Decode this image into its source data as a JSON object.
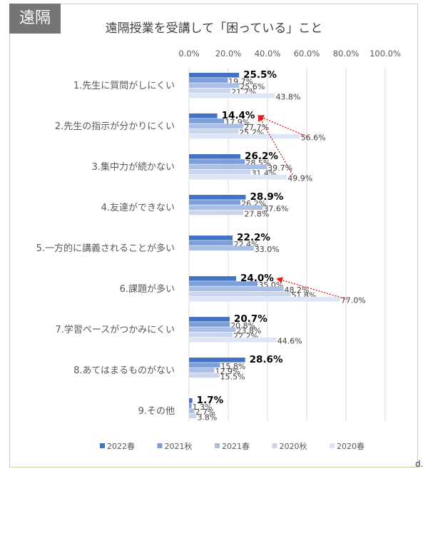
{
  "tag_label": "遠隔",
  "chart_data": {
    "type": "bar",
    "orientation": "horizontal",
    "title": "遠隔授業を受講して「困っている」こと",
    "xlim": [
      0,
      100
    ],
    "x_ticks": [
      "0.0%",
      "20.0%",
      "40.0%",
      "60.0%",
      "80.0%",
      "100.0%"
    ],
    "grid": true,
    "legend_position": "bottom",
    "categories": [
      "1.先生に質問がしにくい",
      "2.先生の指示が分かりにくい",
      "3.集中力が続かない",
      "4.友達ができない",
      "5.一方的に講義されることが多い",
      "6.課題が多い",
      "7.学習ペースがつかみにくい",
      "8.あてはまるものがない",
      "9.その他"
    ],
    "series": [
      {
        "name": "2022春",
        "color": "#4472c4",
        "values": [
          25.5,
          14.4,
          26.2,
          28.9,
          22.2,
          24.0,
          20.7,
          28.6,
          1.7
        ],
        "labels": [
          "25.5%",
          "14.4%",
          "26.2%",
          "28.9%",
          "22.2%",
          "24.0%",
          "20.7%",
          "28.6%",
          "1.7%"
        ]
      },
      {
        "name": "2021秋",
        "color": "#7c9ed9",
        "values": [
          19.7,
          17.9,
          28.5,
          26.2,
          22.4,
          35.0,
          20.8,
          15.8,
          1.3
        ],
        "labels": [
          "19.7%",
          "17.9%",
          "28.5%",
          "26.2%",
          "22.4%",
          "35.0%",
          "20.8%",
          "15.8%",
          "1.3%"
        ]
      },
      {
        "name": "2021春",
        "color": "#a9bfe5",
        "values": [
          25.6,
          27.7,
          39.7,
          37.6,
          33.0,
          48.2,
          23.8,
          12.9,
          2.7
        ],
        "labels": [
          "25.6%",
          "27.7%",
          "39.7%",
          "37.6%",
          "33.0%",
          "48.2%",
          "23.8%",
          "12.9%",
          "2.7%"
        ]
      },
      {
        "name": "2020秋",
        "color": "#c9d6ee",
        "values": [
          21.2,
          25.2,
          31.4,
          27.8,
          null,
          51.8,
          22.2,
          15.5,
          3.8
        ],
        "labels": [
          "21.2%",
          "25.2%",
          "31.4%",
          "27.8%",
          null,
          "51.8%",
          "22.2%",
          "15.5%",
          "3.8%"
        ]
      },
      {
        "name": "2020春",
        "color": "#dde6f6",
        "values": [
          43.8,
          56.6,
          49.9,
          null,
          null,
          77.0,
          44.6,
          null,
          null
        ],
        "labels": [
          "43.8%",
          "56.6%",
          "49.9%",
          null,
          null,
          "77.0%",
          "44.6%",
          null,
          null
        ]
      }
    ],
    "annotations": [
      {
        "type": "arrow",
        "color": "#e02020",
        "from_category": 1,
        "from_series": 4,
        "to_category": 1,
        "to_series": 0
      },
      {
        "type": "arrow",
        "color": "#e02020",
        "from_category": 2,
        "from_series": 4,
        "to_category": 1,
        "to_series": 0
      },
      {
        "type": "arrow",
        "color": "#e02020",
        "from_category": 5,
        "from_series": 4,
        "to_category": 5,
        "to_series": 0
      }
    ]
  },
  "edge_fragments": [
    "d."
  ]
}
